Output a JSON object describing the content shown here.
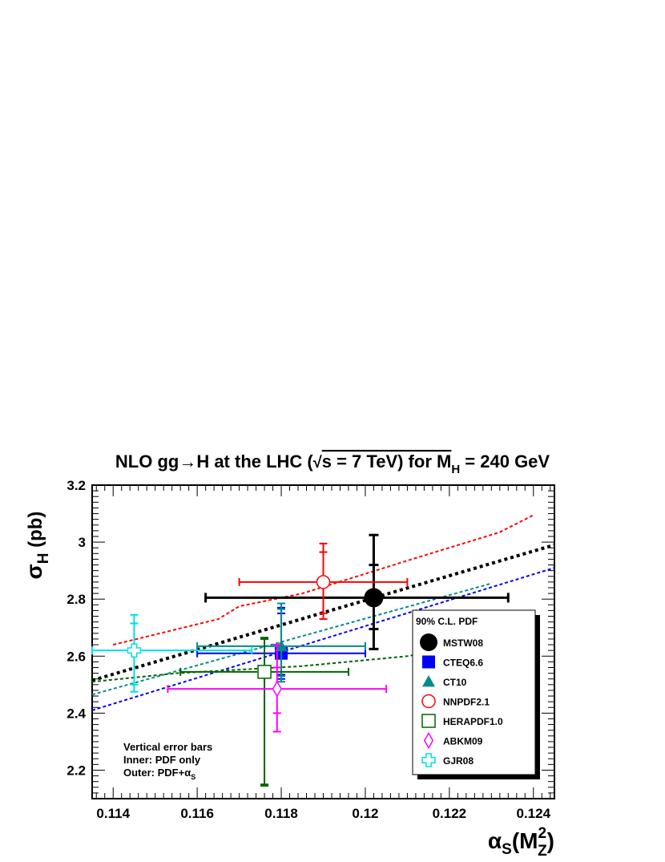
{
  "chart_data": {
    "type": "scatter",
    "title_main": "NLO gg→H at the LHC (",
    "title_rs": "s = 7 TeV) for M",
    "title_sub": "H",
    "title_end": " = 240 GeV",
    "ylabel_main": "σ",
    "ylabel_sub": "H",
    "ylabel_end": "  (pb)",
    "xlabel_main": "α",
    "xlabel_sub": "S",
    "xlabel_arg": "(M",
    "xlabel_sup": "2",
    "xlabel_sub2": "Z",
    "xlabel_end": ")",
    "xlim": [
      0.1135,
      0.1245
    ],
    "ylim": [
      2.1,
      3.2
    ],
    "x_ticks": [
      0.114,
      0.116,
      0.118,
      0.12,
      0.122,
      0.124
    ],
    "x_tick_labels": [
      "0.114",
      "0.116",
      "0.118",
      "0.12",
      "0.122",
      "0.124"
    ],
    "y_ticks": [
      2.2,
      2.4,
      2.6,
      2.8,
      3.0,
      3.2
    ],
    "y_tick_labels": [
      "2.2",
      "2.4",
      "2.6",
      "2.8",
      "3",
      "3.2"
    ],
    "legend_title": "90% C.L. PDF",
    "legend_position": "lower-right",
    "annotation": {
      "line1": "Vertical error bars",
      "line2": "Inner: PDF only",
      "line3_main": "Outer: PDF+α",
      "line3_sub": "S"
    },
    "series": [
      {
        "name": "MSTW08",
        "marker": "filled-circle",
        "color": "#000000",
        "x": 0.1202,
        "y": 2.805,
        "x_err": [
          0.1162,
          0.1234
        ],
        "y_inner": [
          2.695,
          2.92
        ],
        "y_outer": [
          2.625,
          3.025
        ],
        "line": [
          [
            0.1135,
            2.515
          ],
          [
            0.1245,
            2.99
          ]
        ]
      },
      {
        "name": "CTEQ6.6",
        "marker": "filled-square",
        "color": "#0000ff",
        "x": 0.118,
        "y": 2.61,
        "x_err": [
          0.116,
          0.12
        ],
        "y_inner": [
          2.535,
          2.75
        ],
        "y_outer": [
          2.52,
          2.77
        ],
        "line": [
          [
            0.1135,
            2.41
          ],
          [
            0.1245,
            2.91
          ]
        ]
      },
      {
        "name": "CT10",
        "marker": "filled-triangle",
        "color": "#008b8b",
        "x": 0.118,
        "y": 2.635,
        "x_err": [
          0.116,
          0.12
        ],
        "y_inner": [
          2.53,
          2.765
        ],
        "y_outer": [
          2.51,
          2.785
        ],
        "line": [
          [
            0.1135,
            2.465
          ],
          [
            0.123,
            2.855
          ]
        ]
      },
      {
        "name": "NNPDF2.1",
        "marker": "open-circle",
        "color": "#ff0000",
        "x": 0.119,
        "y": 2.86,
        "x_err": [
          0.117,
          0.121
        ],
        "y_inner": [
          2.75,
          2.965
        ],
        "y_outer": [
          2.73,
          2.995
        ],
        "line": [
          [
            0.114,
            2.64
          ],
          [
            0.1165,
            2.73
          ],
          [
            0.117,
            2.775
          ],
          [
            0.1185,
            2.82
          ],
          [
            0.121,
            2.935
          ],
          [
            0.1232,
            3.035
          ],
          [
            0.124,
            3.095
          ]
        ]
      },
      {
        "name": "HERAPDF1.0",
        "marker": "open-square",
        "color": "#006400",
        "x": 0.1176,
        "y": 2.545,
        "x_err": [
          0.1156,
          0.1196
        ],
        "y_inner": [
          2.15,
          2.66
        ],
        "y_outer": [
          2.145,
          2.665
        ],
        "line": [
          [
            0.1135,
            2.51
          ],
          [
            0.1155,
            2.54
          ],
          [
            0.1185,
            2.565
          ],
          [
            0.121,
            2.6
          ],
          [
            0.1225,
            2.64
          ]
        ]
      },
      {
        "name": "ABKM09",
        "marker": "open-diamond",
        "color": "#ff00ff",
        "x": 0.1179,
        "y": 2.485,
        "x_err": [
          0.1153,
          0.1205
        ],
        "y_inner": [
          2.4,
          2.56
        ],
        "y_outer": [
          2.335,
          2.64
        ],
        "line": []
      },
      {
        "name": "GJR08",
        "marker": "open-cross",
        "color": "#00e0e0",
        "x": 0.1145,
        "y": 2.62,
        "x_err": [
          0.1135,
          0.1173
        ],
        "y_inner": [
          2.5,
          2.715
        ],
        "y_outer": [
          2.475,
          2.745
        ],
        "line": []
      }
    ]
  }
}
